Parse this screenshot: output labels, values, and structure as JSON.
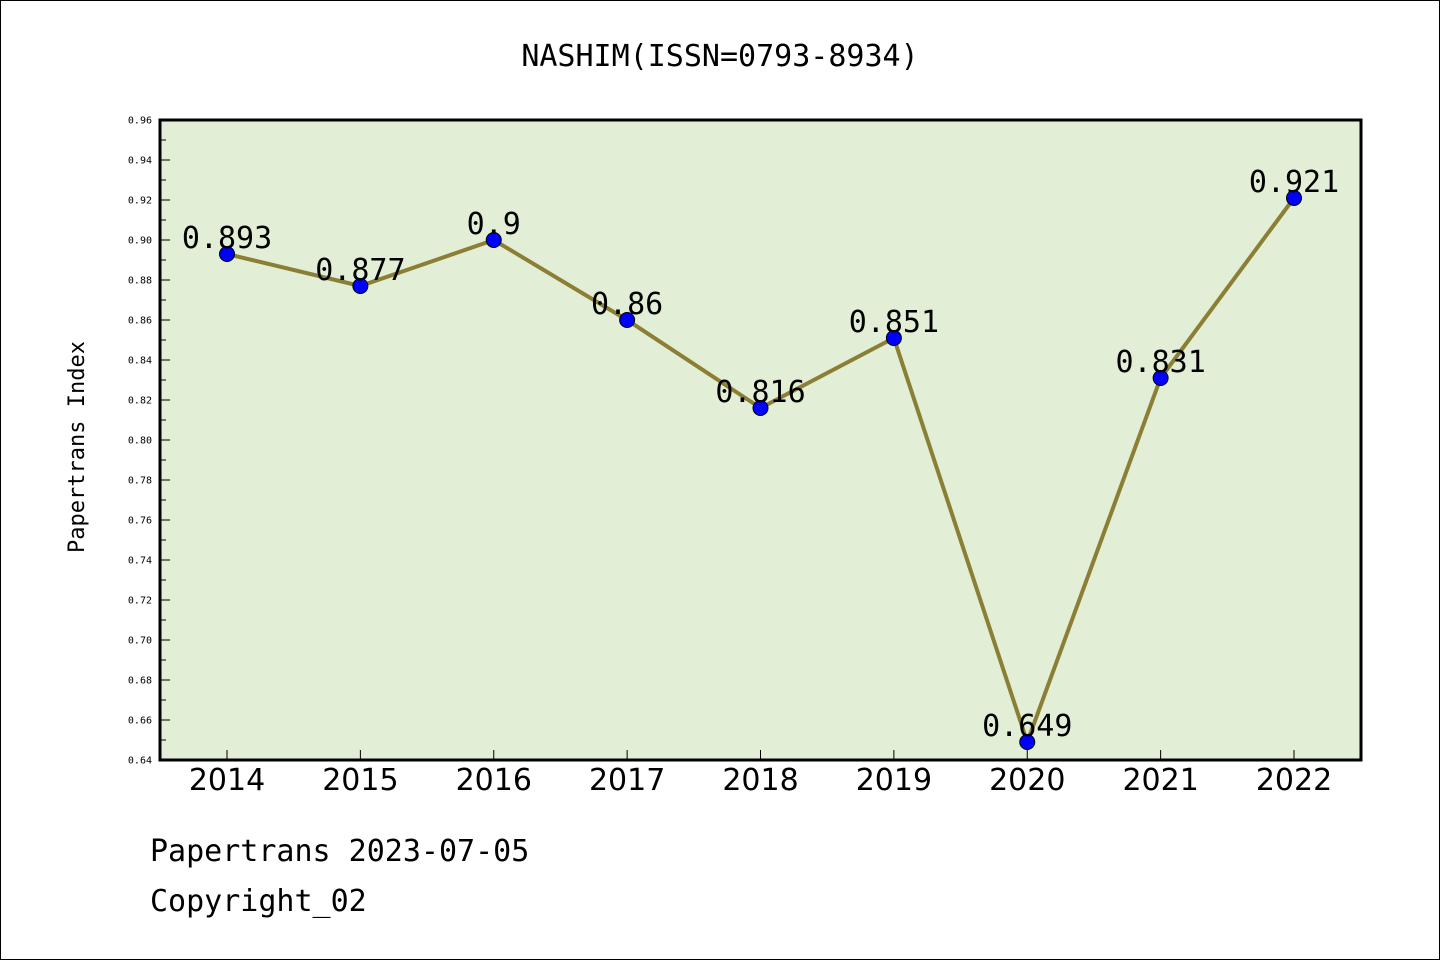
{
  "footer": {
    "line1": "Papertrans 2023-07-05",
    "line2": "Copyright_02"
  },
  "colors": {
    "plot_background": "#e2efd6",
    "line": "#8b7f35",
    "marker": "#0000ff",
    "axis": "#000000"
  },
  "chart_data": {
    "type": "line",
    "title": "NASHIM(ISSN=0793-8934)",
    "xlabel": "",
    "ylabel": "Papertrans Index",
    "categories": [
      "2014",
      "2015",
      "2016",
      "2017",
      "2018",
      "2019",
      "2020",
      "2021",
      "2022"
    ],
    "series": [
      {
        "values": [
          0.893,
          0.877,
          0.9,
          0.86,
          0.816,
          0.851,
          0.649,
          0.831,
          0.921
        ],
        "labels": [
          "0.893",
          "0.877",
          "0.9",
          "0.86",
          "0.816",
          "0.851",
          "0.649",
          "0.831",
          "0.921"
        ]
      }
    ],
    "ylim": [
      0.64,
      0.96
    ],
    "yticks": [
      "0.64",
      "0.66",
      "0.68",
      "0.70",
      "0.72",
      "0.74",
      "0.76",
      "0.78",
      "0.80",
      "0.82",
      "0.84",
      "0.86",
      "0.88",
      "0.90",
      "0.92",
      "0.94",
      "0.96"
    ],
    "grid": false,
    "legend": "none"
  }
}
